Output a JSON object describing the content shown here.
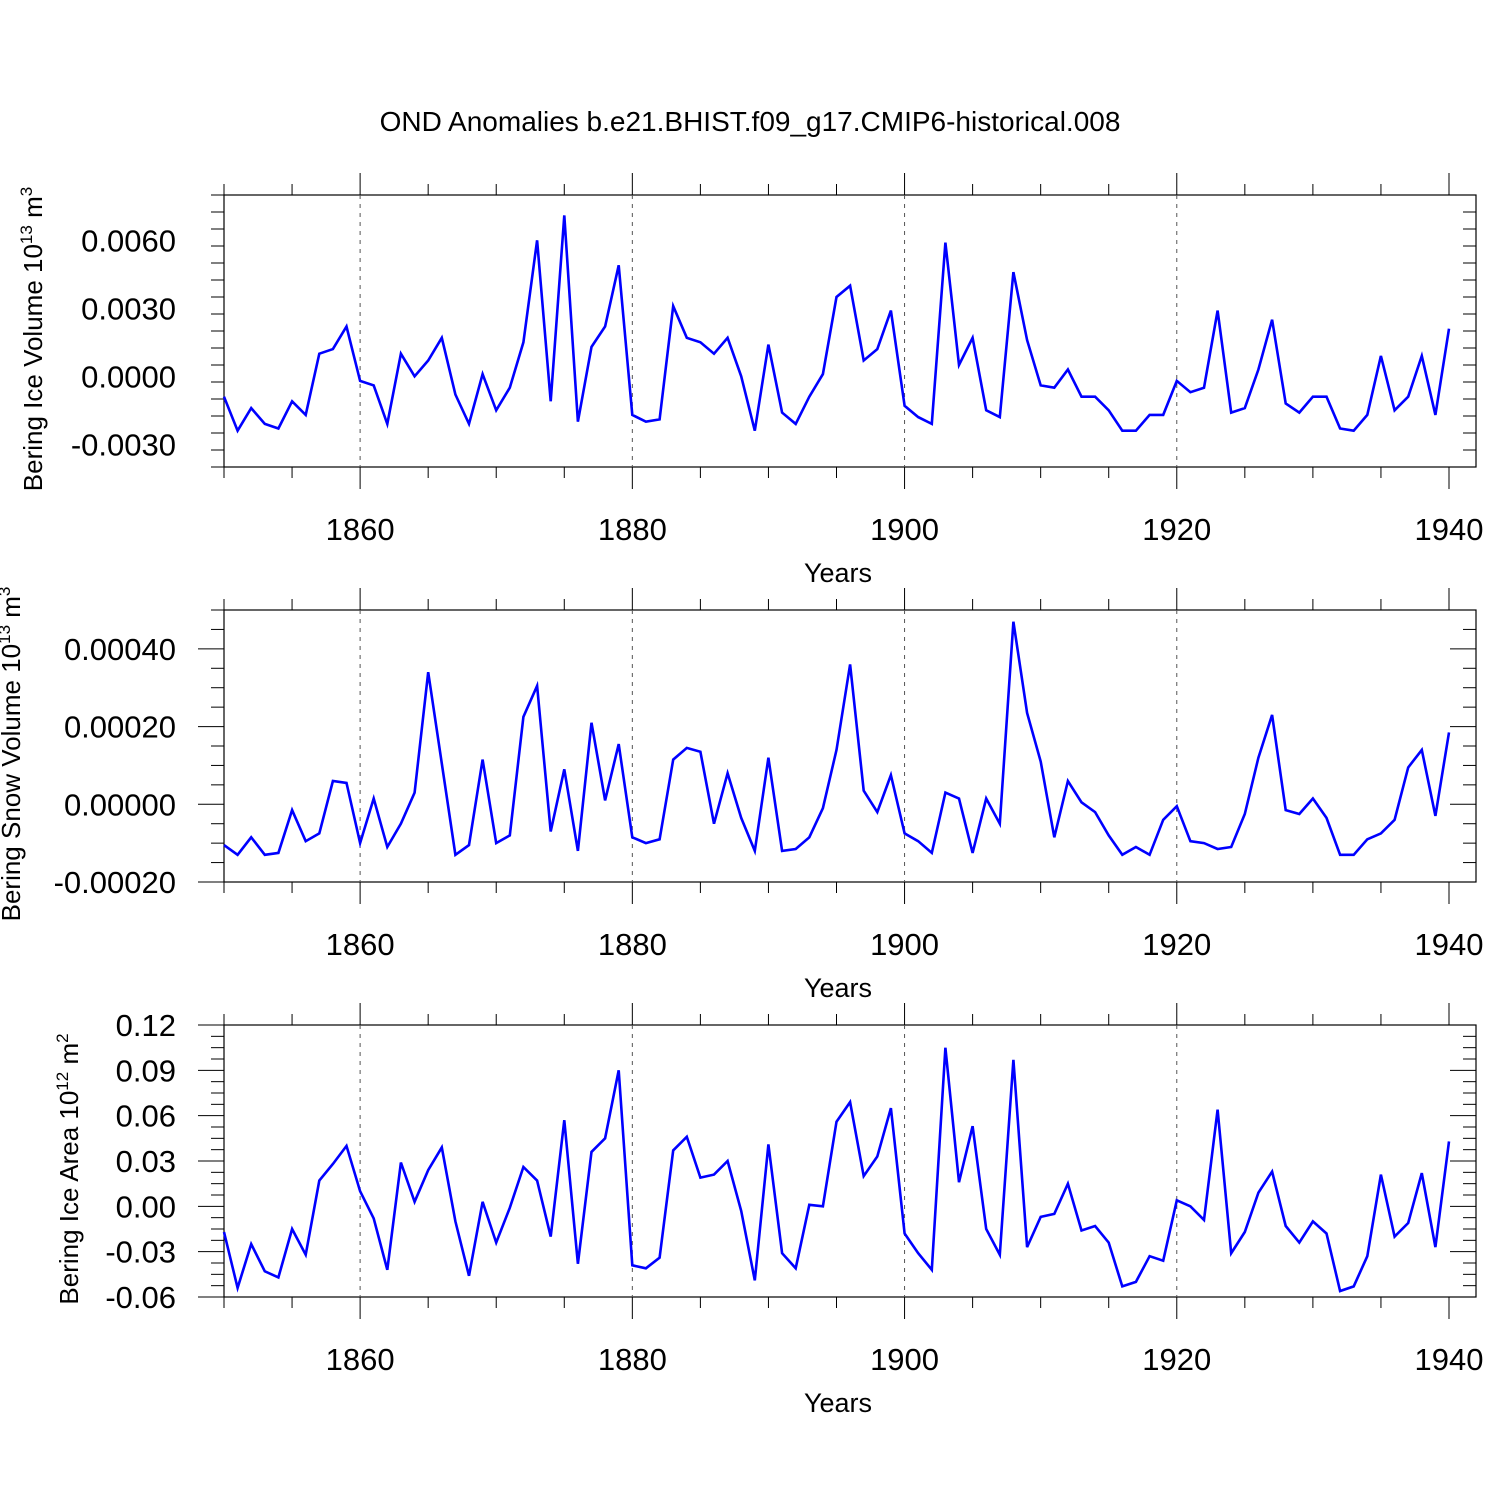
{
  "figure_title": "OND Anomalies b.e21.BHIST.f09_g17.CMIP6-historical.008",
  "line_color": "#0000ff",
  "chart_data": [
    {
      "type": "line",
      "title": "OND Anomalies b.e21.BHIST.f09_g17.CMIP6-historical.008",
      "ylabel": "Bering Ice Volume",
      "yunit_base": "10",
      "yunit_exp": "13",
      "yunit_tail": " m",
      "yunit_sup": "3",
      "xlabel": "Years",
      "xlim": [
        1850,
        1940
      ],
      "ylim": [
        -0.004,
        0.008
      ],
      "xticks": [
        1860,
        1880,
        1900,
        1920,
        1940
      ],
      "yticks": [
        -0.003,
        0.0,
        0.003,
        0.006
      ],
      "ytick_labels": [
        "-0.0030",
        "0.0000",
        "0.0030",
        "0.0060"
      ],
      "x": [
        1850,
        1851,
        1852,
        1853,
        1854,
        1855,
        1856,
        1857,
        1858,
        1859,
        1860,
        1861,
        1862,
        1863,
        1864,
        1865,
        1866,
        1867,
        1868,
        1869,
        1870,
        1871,
        1872,
        1873,
        1874,
        1875,
        1876,
        1877,
        1878,
        1879,
        1880,
        1881,
        1882,
        1883,
        1884,
        1885,
        1886,
        1887,
        1888,
        1889,
        1890,
        1891,
        1892,
        1893,
        1894,
        1895,
        1896,
        1897,
        1898,
        1899,
        1900,
        1901,
        1902,
        1903,
        1904,
        1905,
        1906,
        1907,
        1908,
        1909,
        1910,
        1911,
        1912,
        1913,
        1914,
        1915,
        1916,
        1917,
        1918,
        1919,
        1920,
        1921,
        1922,
        1923,
        1924,
        1925,
        1926,
        1927,
        1928,
        1929,
        1930,
        1931,
        1932,
        1933,
        1934,
        1935,
        1936,
        1937,
        1938,
        1939,
        1940
      ],
      "series": [
        {
          "name": "Bering Ice Volume",
          "values": [
            -0.0009,
            -0.0024,
            -0.0014,
            -0.0021,
            -0.0023,
            -0.0011,
            -0.0017,
            0.001,
            0.0012,
            0.0022,
            -0.0002,
            -0.0004,
            -0.0021,
            0.001,
            0.0,
            0.0007,
            0.0017,
            -0.0008,
            -0.0021,
            0.0001,
            -0.0015,
            -0.0005,
            0.0015,
            0.006,
            -0.0011,
            0.0071,
            -0.002,
            0.0013,
            0.0022,
            0.0049,
            -0.0017,
            -0.002,
            -0.0019,
            0.0031,
            0.0017,
            0.0015,
            0.001,
            0.0017,
            0.0,
            -0.0024,
            0.0014,
            -0.0016,
            -0.0021,
            -0.0009,
            0.0001,
            0.0035,
            0.004,
            0.0007,
            0.0012,
            0.0029,
            -0.0013,
            -0.0018,
            -0.0021,
            0.0059,
            0.0005,
            0.0017,
            -0.0015,
            -0.0018,
            0.0046,
            0.0016,
            -0.0004,
            -0.0005,
            0.0003,
            -0.0009,
            -0.0009,
            -0.0015,
            -0.0024,
            -0.0024,
            -0.0017,
            -0.0017,
            -0.0002,
            -0.0007,
            -0.0005,
            0.0029,
            -0.0016,
            -0.0014,
            0.0003,
            0.0025,
            -0.0012,
            -0.0016,
            -0.0009,
            -0.0009,
            -0.0023,
            -0.0024,
            -0.0017,
            0.0009,
            -0.0015,
            -0.0009,
            0.0009,
            -0.0017,
            0.0021
          ]
        }
      ]
    },
    {
      "type": "line",
      "ylabel": "Bering Snow Volume",
      "yunit_base": "10",
      "yunit_exp": "13",
      "yunit_tail": " m",
      "yunit_sup": "3",
      "xlabel": "Years",
      "xlim": [
        1850,
        1940
      ],
      "ylim": [
        -0.0002,
        0.0005
      ],
      "xticks": [
        1860,
        1880,
        1900,
        1920,
        1940
      ],
      "yticks": [
        -0.0002,
        0.0,
        0.0002,
        0.0004
      ],
      "ytick_labels": [
        "-0.00020",
        "0.00000",
        "0.00020",
        "0.00040"
      ],
      "x": [
        1850,
        1851,
        1852,
        1853,
        1854,
        1855,
        1856,
        1857,
        1858,
        1859,
        1860,
        1861,
        1862,
        1863,
        1864,
        1865,
        1866,
        1867,
        1868,
        1869,
        1870,
        1871,
        1872,
        1873,
        1874,
        1875,
        1876,
        1877,
        1878,
        1879,
        1880,
        1881,
        1882,
        1883,
        1884,
        1885,
        1886,
        1887,
        1888,
        1889,
        1890,
        1891,
        1892,
        1893,
        1894,
        1895,
        1896,
        1897,
        1898,
        1899,
        1900,
        1901,
        1902,
        1903,
        1904,
        1905,
        1906,
        1907,
        1908,
        1909,
        1910,
        1911,
        1912,
        1913,
        1914,
        1915,
        1916,
        1917,
        1918,
        1919,
        1920,
        1921,
        1922,
        1923,
        1924,
        1925,
        1926,
        1927,
        1928,
        1929,
        1930,
        1931,
        1932,
        1933,
        1934,
        1935,
        1936,
        1937,
        1938,
        1939,
        1940
      ],
      "series": [
        {
          "name": "Bering Snow Volume",
          "values": [
            -0.000105,
            -0.00013,
            -8.5e-05,
            -0.00013,
            -0.000125,
            -1.5e-05,
            -9.5e-05,
            -7.5e-05,
            6e-05,
            5.5e-05,
            -0.0001,
            1.5e-05,
            -0.00011,
            -5e-05,
            3e-05,
            0.00034,
            0.000105,
            -0.00013,
            -0.000105,
            0.000115,
            -0.0001,
            -8e-05,
            0.000225,
            0.000305,
            -7e-05,
            9e-05,
            -0.00012,
            0.00021,
            1e-05,
            0.000155,
            -8.5e-05,
            -0.0001,
            -9e-05,
            0.000115,
            0.000145,
            0.000135,
            -5e-05,
            8e-05,
            -3.5e-05,
            -0.00012,
            0.00012,
            -0.00012,
            -0.000115,
            -8.5e-05,
            -1e-05,
            0.00014,
            0.00036,
            3.5e-05,
            -2e-05,
            7.5e-05,
            -7.5e-05,
            -9.5e-05,
            -0.000125,
            3e-05,
            1.5e-05,
            -0.000125,
            1.5e-05,
            -5e-05,
            0.00047,
            0.000235,
            0.00011,
            -8.5e-05,
            6e-05,
            5e-06,
            -2e-05,
            -8e-05,
            -0.00013,
            -0.00011,
            -0.00013,
            -4e-05,
            -5e-06,
            -9.5e-05,
            -0.0001,
            -0.000115,
            -0.00011,
            -2.5e-05,
            0.00012,
            0.00023,
            -1.5e-05,
            -2.5e-05,
            1.5e-05,
            -3.5e-05,
            -0.00013,
            -0.00013,
            -9e-05,
            -7.5e-05,
            -4e-05,
            9.5e-05,
            0.00014,
            -3e-05,
            0.000185
          ]
        }
      ]
    },
    {
      "type": "line",
      "ylabel": "Bering Ice Area",
      "yunit_base": "10",
      "yunit_exp": "12",
      "yunit_tail": " m",
      "yunit_sup": "2",
      "xlabel": "Years",
      "xlim": [
        1850,
        1940
      ],
      "ylim": [
        -0.06,
        0.12
      ],
      "xticks": [
        1860,
        1880,
        1900,
        1920,
        1940
      ],
      "yticks": [
        -0.06,
        -0.03,
        0.0,
        0.03,
        0.06,
        0.09,
        0.12
      ],
      "ytick_labels": [
        "-0.06",
        "-0.03",
        "0.00",
        "0.03",
        "0.06",
        "0.09",
        "0.12"
      ],
      "x": [
        1850,
        1851,
        1852,
        1853,
        1854,
        1855,
        1856,
        1857,
        1858,
        1859,
        1860,
        1861,
        1862,
        1863,
        1864,
        1865,
        1866,
        1867,
        1868,
        1869,
        1870,
        1871,
        1872,
        1873,
        1874,
        1875,
        1876,
        1877,
        1878,
        1879,
        1880,
        1881,
        1882,
        1883,
        1884,
        1885,
        1886,
        1887,
        1888,
        1889,
        1890,
        1891,
        1892,
        1893,
        1894,
        1895,
        1896,
        1897,
        1898,
        1899,
        1900,
        1901,
        1902,
        1903,
        1904,
        1905,
        1906,
        1907,
        1908,
        1909,
        1910,
        1911,
        1912,
        1913,
        1914,
        1915,
        1916,
        1917,
        1918,
        1919,
        1920,
        1921,
        1922,
        1923,
        1924,
        1925,
        1926,
        1927,
        1928,
        1929,
        1930,
        1931,
        1932,
        1933,
        1934,
        1935,
        1936,
        1937,
        1938,
        1939,
        1940
      ],
      "series": [
        {
          "name": "Bering Ice Area",
          "values": [
            -0.017,
            -0.054,
            -0.025,
            -0.043,
            -0.047,
            -0.015,
            -0.032,
            0.017,
            0.028,
            0.04,
            0.01,
            -0.008,
            -0.042,
            0.029,
            0.003,
            0.024,
            0.039,
            -0.01,
            -0.046,
            0.003,
            -0.024,
            -0.001,
            0.026,
            0.017,
            -0.02,
            0.057,
            -0.038,
            0.036,
            0.045,
            0.09,
            -0.039,
            -0.041,
            -0.034,
            0.037,
            0.046,
            0.019,
            0.021,
            0.03,
            -0.003,
            -0.049,
            0.041,
            -0.031,
            -0.041,
            0.001,
            0.0,
            0.056,
            0.069,
            0.02,
            0.033,
            0.065,
            -0.018,
            -0.031,
            -0.042,
            0.105,
            0.016,
            0.053,
            -0.015,
            -0.032,
            0.097,
            -0.027,
            -0.007,
            -0.005,
            0.015,
            -0.016,
            -0.013,
            -0.024,
            -0.053,
            -0.05,
            -0.033,
            -0.036,
            0.004,
            0.0,
            -0.009,
            0.064,
            -0.031,
            -0.017,
            0.009,
            0.023,
            -0.013,
            -0.024,
            -0.01,
            -0.018,
            -0.056,
            -0.053,
            -0.033,
            0.021,
            -0.02,
            -0.011,
            0.022,
            -0.027,
            0.043
          ]
        }
      ]
    }
  ]
}
